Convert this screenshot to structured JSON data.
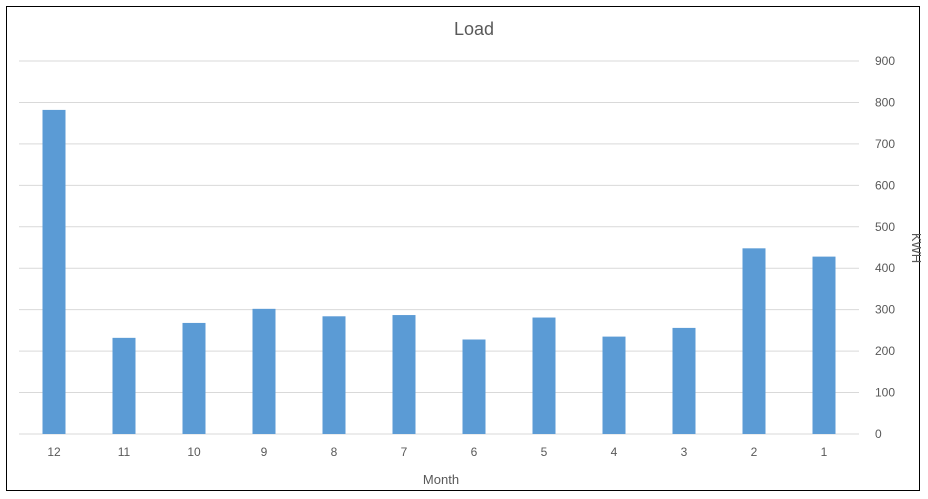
{
  "chart_data": {
    "type": "bar",
    "title": "Load",
    "xlabel": "Month",
    "ylabel": "KWH",
    "categories": [
      "12",
      "11",
      "10",
      "9",
      "8",
      "7",
      "6",
      "5",
      "4",
      "3",
      "2",
      "1"
    ],
    "values": [
      782,
      232,
      268,
      302,
      284,
      287,
      228,
      281,
      235,
      256,
      448,
      428
    ],
    "ylim": [
      0,
      900
    ],
    "yticks": [
      0,
      100,
      200,
      300,
      400,
      500,
      600,
      700,
      800,
      900
    ],
    "y_axis_side": "right",
    "grid": true,
    "legend": "none",
    "bar_color": "#5b9bd5",
    "grid_color": "#d9d9d9"
  }
}
